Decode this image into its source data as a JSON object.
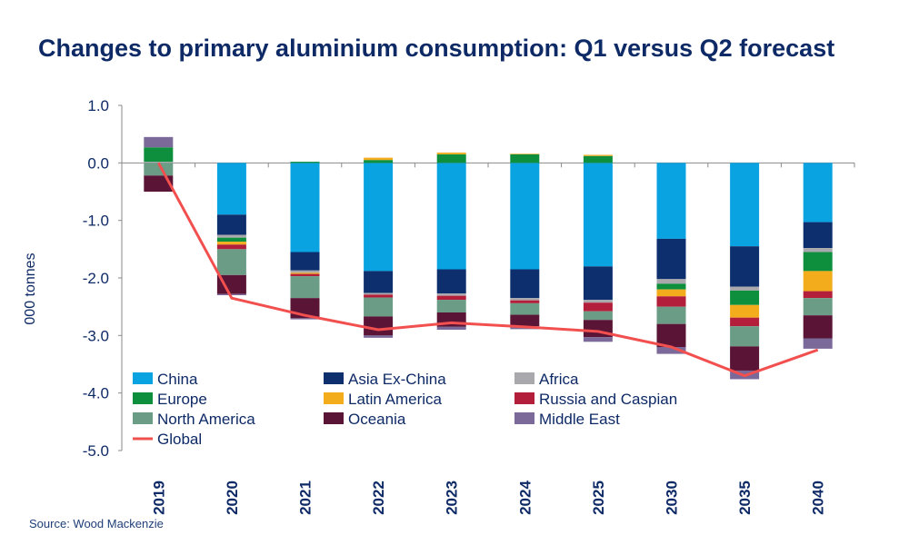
{
  "title": "Changes to primary aluminium consumption: Q1 versus Q2 forecast",
  "source": "Source: Wood Mackenzie",
  "chart_data": {
    "type": "bar",
    "stacked": true,
    "ylabel": "000 tonnes",
    "ylim": [
      -5.0,
      1.0
    ],
    "yticks": [
      "1.0",
      "0.0",
      "-1.0",
      "-2.0",
      "-3.0",
      "-4.0",
      "-5.0"
    ],
    "categories": [
      "2019",
      "2020",
      "2021",
      "2022",
      "2023",
      "2024",
      "2025",
      "2030",
      "2035",
      "2040"
    ],
    "series": [
      {
        "name": "China",
        "color": "#0aa3e2",
        "values": [
          0.0,
          -0.9,
          -1.55,
          -1.88,
          -1.85,
          -1.85,
          -1.8,
          -1.32,
          -1.45,
          -1.03
        ]
      },
      {
        "name": "Asia Ex-China",
        "color": "#0d2f6d",
        "values": [
          0.0,
          -0.35,
          -0.32,
          -0.38,
          -0.42,
          -0.5,
          -0.58,
          -0.7,
          -0.7,
          -0.45
        ]
      },
      {
        "name": "Africa",
        "color": "#a9a9ad",
        "values": [
          0.02,
          -0.05,
          -0.04,
          -0.03,
          -0.04,
          -0.04,
          -0.05,
          -0.08,
          -0.07,
          -0.07
        ]
      },
      {
        "name": "Europe",
        "color": "#0e8f3e",
        "values": [
          0.25,
          -0.07,
          0.02,
          0.05,
          0.15,
          0.15,
          0.12,
          -0.1,
          -0.25,
          -0.33
        ]
      },
      {
        "name": "Latin America",
        "color": "#f2ac1c",
        "values": [
          0.0,
          -0.05,
          -0.02,
          0.04,
          0.03,
          0.01,
          0.02,
          -0.12,
          -0.22,
          -0.35
        ]
      },
      {
        "name": "Russia and Caspian",
        "color": "#b31e3a",
        "values": [
          0.0,
          -0.08,
          -0.04,
          -0.05,
          -0.07,
          -0.05,
          -0.15,
          -0.18,
          -0.15,
          -0.12
        ]
      },
      {
        "name": "North America",
        "color": "#6a9c86",
        "values": [
          -0.22,
          -0.45,
          -0.38,
          -0.33,
          -0.22,
          -0.2,
          -0.15,
          -0.3,
          -0.35,
          -0.3
        ]
      },
      {
        "name": "Oceania",
        "color": "#5a1436",
        "values": [
          -0.28,
          -0.33,
          -0.35,
          -0.33,
          -0.25,
          -0.2,
          -0.3,
          -0.4,
          -0.42,
          -0.4
        ]
      },
      {
        "name": "Middle East",
        "color": "#7b6a99",
        "values": [
          0.18,
          -0.02,
          -0.02,
          -0.04,
          -0.05,
          -0.05,
          -0.08,
          -0.12,
          -0.15,
          -0.18
        ]
      }
    ],
    "line": {
      "name": "Global",
      "color": "#f24f4f",
      "values": [
        0.0,
        -2.35,
        -2.65,
        -2.9,
        -2.78,
        -2.85,
        -2.93,
        -3.2,
        -3.7,
        -3.25
      ]
    },
    "legend_position": "bottom-left, inside plot",
    "grid": false
  }
}
